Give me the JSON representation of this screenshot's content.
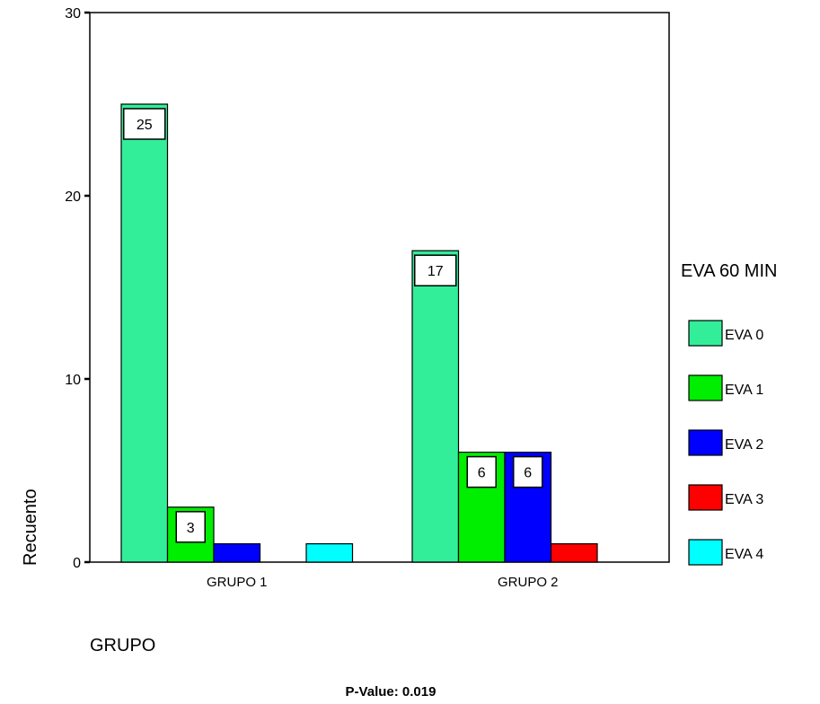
{
  "chart_data": {
    "type": "bar",
    "categories": [
      "GRUPO 1",
      "GRUPO 2"
    ],
    "series": [
      {
        "name": "EVA 0",
        "values": [
          25,
          17
        ],
        "color": "#33ee99"
      },
      {
        "name": "EVA 1",
        "values": [
          3,
          6
        ],
        "color": "#00ee00"
      },
      {
        "name": "EVA 2",
        "values": [
          1,
          6
        ],
        "color": "#0000ff"
      },
      {
        "name": "EVA 3",
        "values": [
          0,
          1
        ],
        "color": "#ff0000"
      },
      {
        "name": "EVA 4",
        "values": [
          1,
          0
        ],
        "color": "#00ffff"
      }
    ],
    "data_labels": [
      {
        "category": "GRUPO 1",
        "series": "EVA 0",
        "text": "25"
      },
      {
        "category": "GRUPO 1",
        "series": "EVA 1",
        "text": "3"
      },
      {
        "category": "GRUPO 2",
        "series": "EVA 0",
        "text": "17"
      },
      {
        "category": "GRUPO 2",
        "series": "EVA 1",
        "text": "6"
      },
      {
        "category": "GRUPO 2",
        "series": "EVA 2",
        "text": "6"
      }
    ],
    "legend_title": "EVA 60 MIN",
    "legend_position": "right",
    "xlabel": "GRUPO",
    "ylabel": "Recuento",
    "ylim": [
      0,
      30
    ],
    "yticks": [
      0,
      10,
      20,
      30
    ],
    "grid": false,
    "footnote": "P-Value: 0.019"
  }
}
